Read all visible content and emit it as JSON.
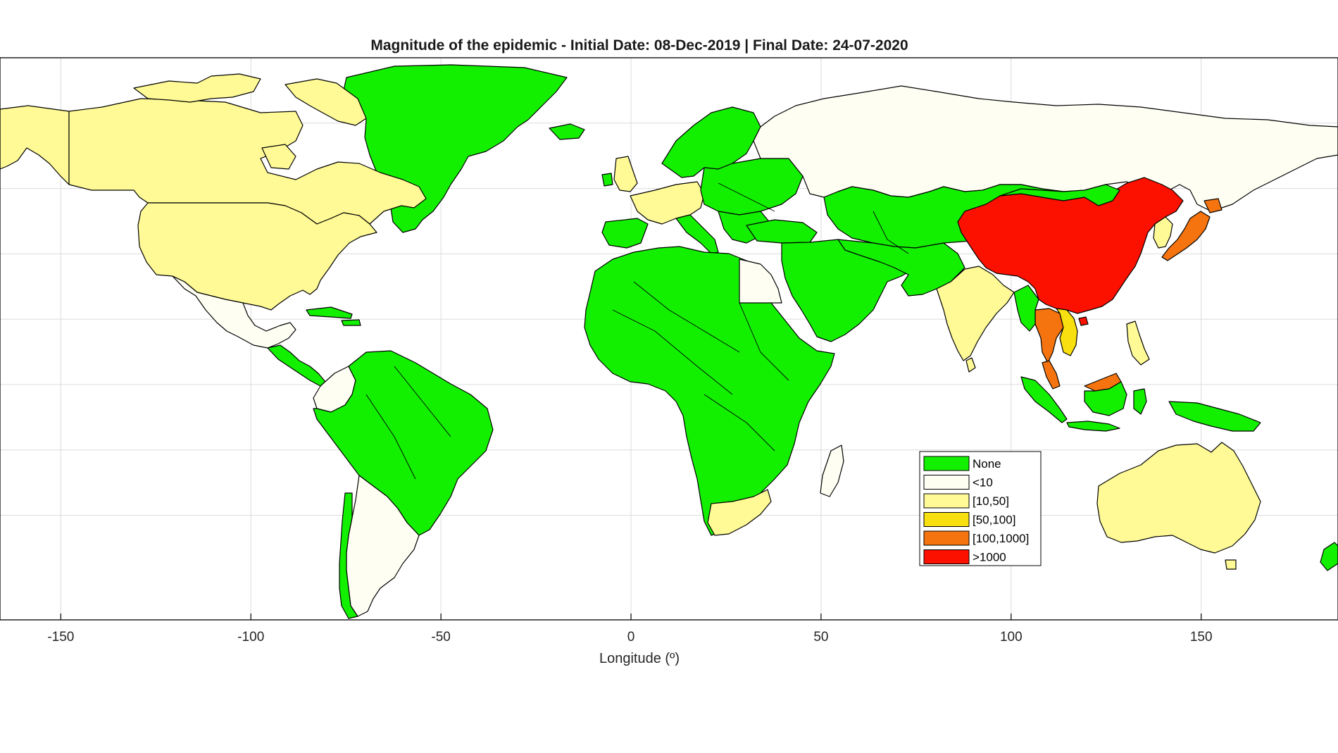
{
  "figure": {
    "title": "Magnitude of the epidemic - Initial Date: 08-Dec-2019 | Final Date: 24-07-2020",
    "xlabel": "Longitude (º)"
  },
  "axis": {
    "x_range": [
      -166,
      186
    ],
    "x_ticks": [
      -150,
      -100,
      -50,
      0,
      50,
      100,
      150
    ],
    "x_tick_labels": [
      "-150",
      "-100",
      "-50",
      "0",
      "50",
      "100",
      "150"
    ],
    "grid": "on",
    "map_colors": {
      "ocean": "#ffffff",
      "frame": "#000000",
      "grid": "#dcdcdc"
    }
  },
  "legend": {
    "placement": "lower-right",
    "entries": [
      {
        "label": "None",
        "color": "#12f000"
      },
      {
        "label": "<10",
        "color": "#fefff2"
      },
      {
        "label": "[10,50]",
        "color": "#fffa96"
      },
      {
        "label": "[50,100]",
        "color": "#f8df10"
      },
      {
        "label": "[100,1000]",
        "color": "#f5740f"
      },
      {
        "label": ">1000",
        "color": "#fc1000"
      }
    ]
  },
  "regions": [
    {
      "name": "China",
      "category": ">1000"
    },
    {
      "name": "Japan",
      "category": "[100,1000]"
    },
    {
      "name": "Thailand",
      "category": "[100,1000]"
    },
    {
      "name": "Malaysia",
      "category": "[100,1000]"
    },
    {
      "name": "Vietnam",
      "category": "[50,100]"
    },
    {
      "name": "United States",
      "category": "[10,50]"
    },
    {
      "name": "Canada",
      "category": "[10,50]"
    },
    {
      "name": "Alaska",
      "category": "[10,50]"
    },
    {
      "name": "India",
      "category": "[10,50]"
    },
    {
      "name": "Australia",
      "category": "[10,50]"
    },
    {
      "name": "South Africa",
      "category": "[10,50]"
    },
    {
      "name": "Korea",
      "category": "[10,50]"
    },
    {
      "name": "Philippines",
      "category": "[10,50]"
    },
    {
      "name": "Sri Lanka",
      "category": "[10,50]"
    },
    {
      "name": "United Kingdom",
      "category": "[10,50]"
    },
    {
      "name": "Germany",
      "category": "[10,50]"
    },
    {
      "name": "France",
      "category": "[10,50]"
    },
    {
      "name": "Russia",
      "category": "<10"
    },
    {
      "name": "Mexico",
      "category": "<10"
    },
    {
      "name": "Argentina",
      "category": "<10"
    },
    {
      "name": "Colombia",
      "category": "<10"
    },
    {
      "name": "Egypt",
      "category": "<10"
    },
    {
      "name": "Madagascar",
      "category": "<10"
    },
    {
      "name": "Greenland",
      "category": "None"
    },
    {
      "name": "Brazil",
      "category": "None"
    },
    {
      "name": "Africa",
      "category": "None"
    },
    {
      "name": "Middle East",
      "category": "None"
    },
    {
      "name": "Central Asia",
      "category": "None"
    },
    {
      "name": "Indonesia",
      "category": "None"
    }
  ]
}
